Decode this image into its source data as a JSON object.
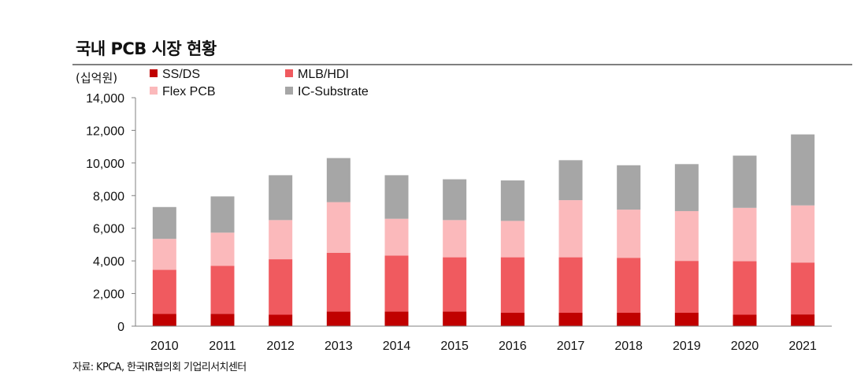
{
  "title": "국내 PCB 시장 현황",
  "unit_label": "(십억원)",
  "source": "자료: KPCA, 한국IR협의회 기업리서치센터",
  "chart_data": {
    "type": "bar",
    "stacked": true,
    "title": "국내 PCB 시장 현황",
    "ylabel": "(십억원)",
    "xlabel": "",
    "ylim": [
      0,
      14000
    ],
    "yticks": [
      0,
      2000,
      4000,
      6000,
      8000,
      10000,
      12000,
      14000
    ],
    "ytick_labels": [
      "0",
      "2,000",
      "4,000",
      "6,000",
      "8,000",
      "10,000",
      "12,000",
      "14,000"
    ],
    "categories": [
      "2010",
      "2011",
      "2012",
      "2013",
      "2014",
      "2015",
      "2016",
      "2017",
      "2018",
      "2019",
      "2020",
      "2021"
    ],
    "series": [
      {
        "name": "SS/DS",
        "color": "#c00000",
        "values": [
          750,
          760,
          700,
          900,
          900,
          900,
          820,
          820,
          820,
          820,
          700,
          720
        ]
      },
      {
        "name": "MLB/HDI",
        "color": "#f05a5f",
        "values": [
          2700,
          2940,
          3400,
          3600,
          3430,
          3320,
          3400,
          3400,
          3370,
          3180,
          3280,
          3180
        ]
      },
      {
        "name": "Flex PCB",
        "color": "#fbb9bb",
        "values": [
          1900,
          2030,
          2400,
          3100,
          2250,
          2280,
          2230,
          3500,
          2950,
          3050,
          3270,
          3500
        ]
      },
      {
        "name": "IC-Substrate",
        "color": "#a6a6a6",
        "values": [
          1950,
          2220,
          2750,
          2700,
          2670,
          2500,
          2480,
          2450,
          2720,
          2880,
          3200,
          4350
        ]
      }
    ],
    "legend_position": "top-left",
    "grid": false
  }
}
